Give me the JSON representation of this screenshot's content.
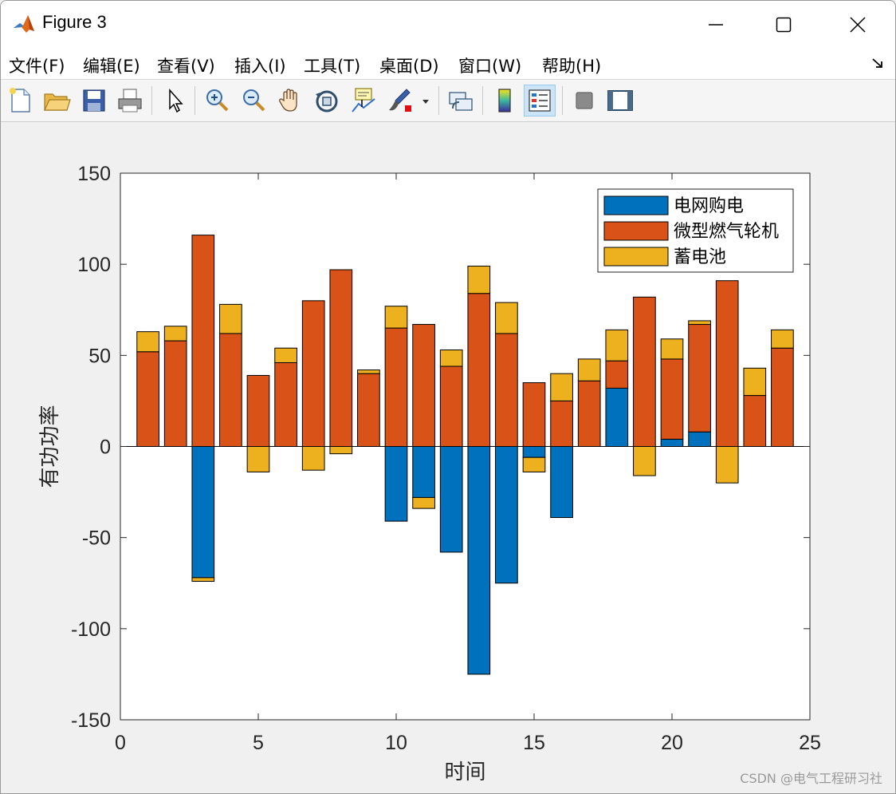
{
  "window": {
    "title": "Figure 3"
  },
  "menu": [
    "文件(F)",
    "编辑(E)",
    "查看(V)",
    "插入(I)",
    "工具(T)",
    "桌面(D)",
    "窗口(W)",
    "帮助(H)"
  ],
  "toolbar": {
    "icons": [
      "new-figure-icon",
      "open-file-icon",
      "save-icon",
      "print-icon",
      "pointer-icon",
      "zoom-in-icon",
      "zoom-out-icon",
      "pan-icon",
      "rotate-3d-icon",
      "data-cursor-icon",
      "brush-icon",
      "link-plot-icon",
      "colorbar-icon",
      "legend-icon",
      "hide-plot-tools-icon",
      "show-plot-tools-icon"
    ]
  },
  "watermark": "CSDN @电气工程研习社",
  "chart_data": {
    "type": "bar",
    "stacked": true,
    "xlabel": "时间",
    "ylabel": "有功功率",
    "xlim": [
      0,
      25
    ],
    "ylim": [
      -150,
      150
    ],
    "xticks": [
      0,
      5,
      10,
      15,
      20,
      25
    ],
    "yticks": [
      -150,
      -100,
      -50,
      0,
      50,
      100,
      150
    ],
    "grid": false,
    "legend_position": "top-right",
    "x": [
      1,
      2,
      3,
      4,
      5,
      6,
      7,
      8,
      9,
      10,
      11,
      12,
      13,
      14,
      15,
      16,
      17,
      18,
      19,
      20,
      21,
      22,
      23,
      24
    ],
    "series": [
      {
        "name": "电网购电",
        "color": "#0072BD",
        "values": [
          0,
          0,
          -72,
          0,
          0,
          0,
          0,
          0,
          0,
          -41,
          -28,
          -58,
          -125,
          -75,
          -6,
          -39,
          0,
          32,
          0,
          4,
          8,
          0,
          0,
          0
        ]
      },
      {
        "name": "微型燃气轮机",
        "color": "#D95319",
        "values": [
          52,
          58,
          116,
          62,
          39,
          46,
          80,
          97,
          40,
          65,
          67,
          44,
          84,
          62,
          35,
          25,
          36,
          15,
          82,
          44,
          59,
          91,
          28,
          54
        ]
      },
      {
        "name": "蓄电池",
        "color": "#EDB120",
        "values": [
          11,
          8,
          -2,
          16,
          -14,
          8,
          -13,
          -4,
          2,
          12,
          -6,
          9,
          15,
          17,
          -8,
          15,
          12,
          17,
          -16,
          11,
          2,
          -20,
          15,
          10
        ]
      }
    ]
  }
}
